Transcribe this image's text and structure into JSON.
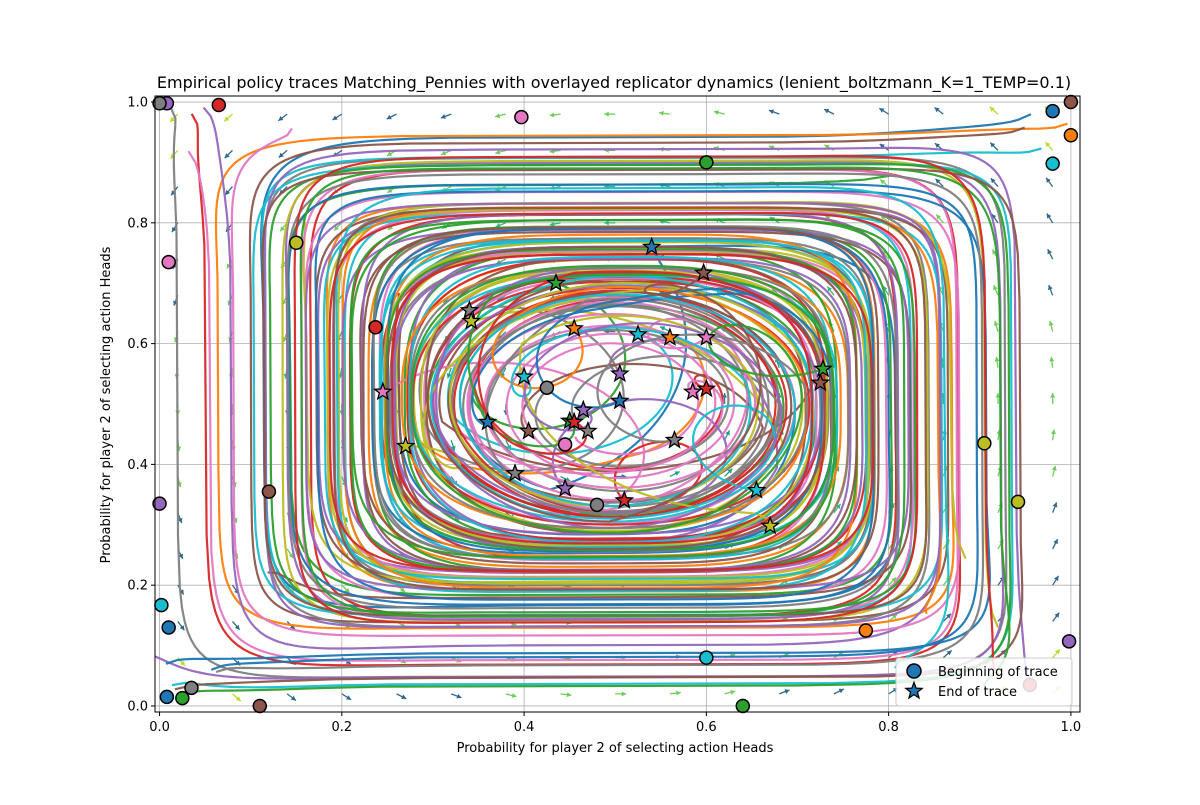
{
  "chart_data": {
    "type": "scatter",
    "title": "Empirical policy traces Matching_Pennies with overlayed replicator dynamics (lenient_boltzmann_K=1_TEMP=0.1)",
    "xlabel": "Probability for player 2 of selecting action Heads",
    "ylabel": "Probability for player 2 of selecting action Heads",
    "xlim": [
      -0.005,
      1.01
    ],
    "ylim": [
      -0.01,
      1.01
    ],
    "grid": true,
    "xticks": [
      "0.0",
      "0.2",
      "0.4",
      "0.6",
      "0.8",
      "1.0"
    ],
    "yticks": [
      "0.0",
      "0.2",
      "0.4",
      "0.6",
      "0.8",
      "1.0"
    ],
    "legend": {
      "placement": "lower-right",
      "entries": [
        "Beginning of trace",
        "End of trace"
      ]
    },
    "colors": [
      "#1f77b4",
      "#ff7f0e",
      "#2ca02c",
      "#d62728",
      "#9467bd",
      "#8c564b",
      "#e377c2",
      "#7f7f7f",
      "#bcbd22",
      "#17becf"
    ],
    "series": [
      {
        "start": [
          0.98,
          0.985
        ],
        "end": [
          0.54,
          0.76
        ],
        "color": "#1f77b4"
      },
      {
        "start": [
          1.0,
          0.945
        ],
        "end": [
          0.56,
          0.61
        ],
        "color": "#ff7f0e"
      },
      {
        "start": [
          0.6,
          0.9
        ],
        "end": [
          0.435,
          0.7
        ],
        "color": "#2ca02c"
      },
      {
        "start": [
          0.065,
          0.995
        ],
        "end": [
          0.6,
          0.525
        ],
        "color": "#d62728"
      },
      {
        "start": [
          0.008,
          0.998
        ],
        "end": [
          0.505,
          0.55
        ],
        "color": "#9467bd"
      },
      {
        "start": [
          1.0,
          1.0
        ],
        "end": [
          0.725,
          0.535
        ],
        "color": "#8c564b"
      },
      {
        "start": [
          0.397,
          0.975
        ],
        "end": [
          0.585,
          0.52
        ],
        "color": "#e377c2"
      },
      {
        "start": [
          0.0,
          0.998
        ],
        "end": [
          0.34,
          0.655
        ],
        "color": "#7f7f7f"
      },
      {
        "start": [
          0.15,
          0.767
        ],
        "end": [
          0.342,
          0.637
        ],
        "color": "#bcbd22"
      },
      {
        "start": [
          0.98,
          0.898
        ],
        "end": [
          0.525,
          0.615
        ],
        "color": "#17becf"
      },
      {
        "start": [
          0.01,
          0.735
        ],
        "end": [
          0.245,
          0.52
        ],
        "color": "#e377c2"
      },
      {
        "start": [
          0.237,
          0.627
        ],
        "end": [
          0.51,
          0.34
        ],
        "color": "#d62728"
      },
      {
        "start": [
          0.425,
          0.527
        ],
        "end": [
          0.47,
          0.455
        ],
        "color": "#7f7f7f"
      },
      {
        "start": [
          0.12,
          0.355
        ],
        "end": [
          0.405,
          0.455
        ],
        "color": "#8c564b"
      },
      {
        "start": [
          0.0,
          0.335
        ],
        "end": [
          0.445,
          0.36
        ],
        "color": "#9467bd"
      },
      {
        "start": [
          0.445,
          0.433
        ],
        "end": [
          0.6,
          0.61
        ],
        "color": "#e377c2"
      },
      {
        "start": [
          0.48,
          0.333
        ],
        "end": [
          0.39,
          0.385
        ],
        "color": "#7f7f7f"
      },
      {
        "start": [
          0.905,
          0.435
        ],
        "end": [
          0.67,
          0.298
        ],
        "color": "#bcbd22"
      },
      {
        "start": [
          0.942,
          0.338
        ],
        "end": [
          0.27,
          0.43
        ],
        "color": "#bcbd22"
      },
      {
        "start": [
          0.002,
          0.167
        ],
        "end": [
          0.655,
          0.357
        ],
        "color": "#17becf"
      },
      {
        "start": [
          0.01,
          0.13
        ],
        "end": [
          0.36,
          0.47
        ],
        "color": "#1f77b4"
      },
      {
        "start": [
          0.775,
          0.125
        ],
        "end": [
          0.455,
          0.625
        ],
        "color": "#ff7f0e"
      },
      {
        "start": [
          0.6,
          0.08
        ],
        "end": [
          0.4,
          0.545
        ],
        "color": "#17becf"
      },
      {
        "start": [
          0.998,
          0.107
        ],
        "end": [
          0.465,
          0.49
        ],
        "color": "#9467bd"
      },
      {
        "start": [
          0.008,
          0.015
        ],
        "end": [
          0.505,
          0.505
        ],
        "color": "#1f77b4"
      },
      {
        "start": [
          0.035,
          0.03
        ],
        "end": [
          0.565,
          0.44
        ],
        "color": "#7f7f7f"
      },
      {
        "start": [
          0.025,
          0.013
        ],
        "end": [
          0.728,
          0.558
        ],
        "color": "#2ca02c"
      },
      {
        "start": [
          0.11,
          0.0
        ],
        "end": [
          0.597,
          0.717
        ],
        "color": "#8c564b"
      },
      {
        "start": [
          0.64,
          0.0
        ],
        "end": [
          0.45,
          0.472
        ],
        "color": "#2ca02c"
      },
      {
        "start": [
          0.955,
          0.035
        ],
        "end": [
          0.455,
          0.47
        ],
        "color": "#d62728"
      }
    ]
  }
}
